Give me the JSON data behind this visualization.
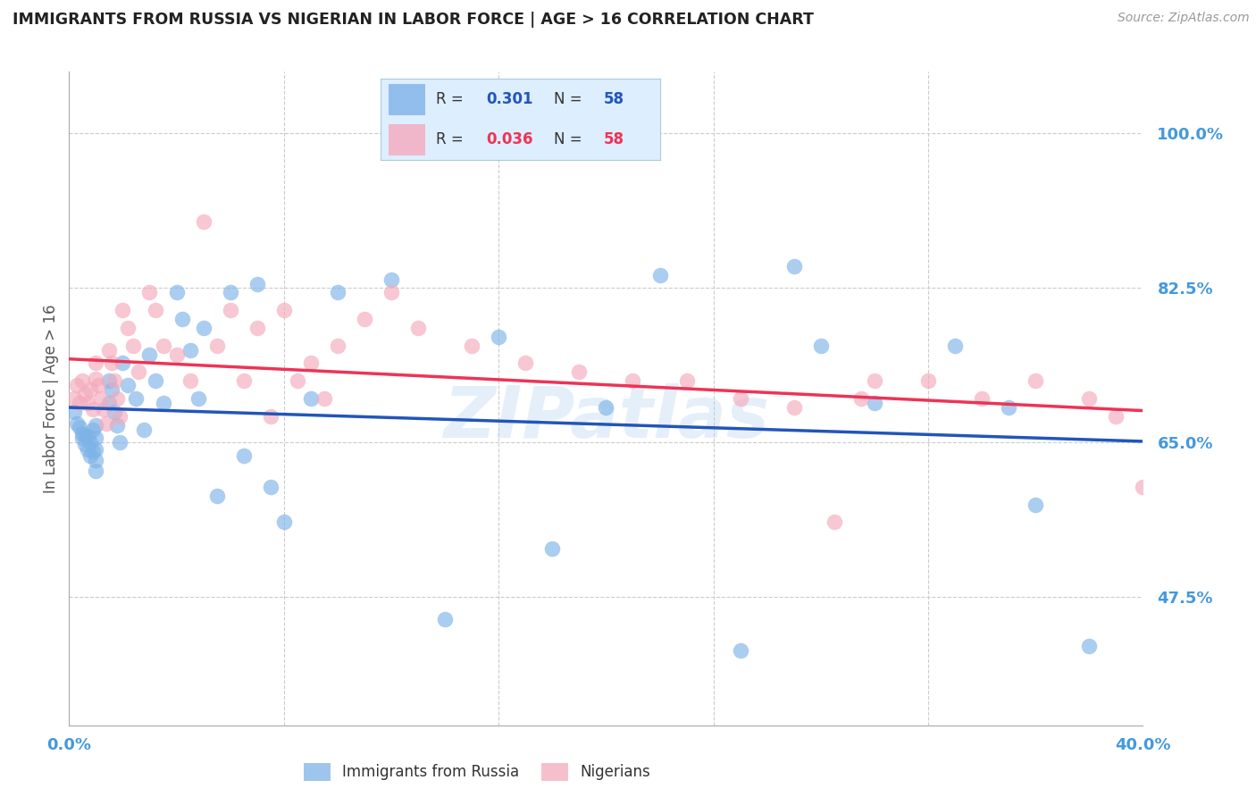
{
  "title": "IMMIGRANTS FROM RUSSIA VS NIGERIAN IN LABOR FORCE | AGE > 16 CORRELATION CHART",
  "source": "Source: ZipAtlas.com",
  "ylabel": "In Labor Force | Age > 16",
  "ytick_values": [
    1.0,
    0.825,
    0.65,
    0.475
  ],
  "xlim": [
    0.0,
    0.4
  ],
  "ylim": [
    0.33,
    1.07
  ],
  "color_blue": "#7EB3E8",
  "color_pink": "#F4AABC",
  "color_line_blue": "#2255BB",
  "color_line_pink": "#EE3355",
  "color_axis_labels": "#4499DD",
  "watermark": "ZIPatlas",
  "russia_x": [
    0.002,
    0.003,
    0.004,
    0.005,
    0.005,
    0.006,
    0.006,
    0.007,
    0.007,
    0.008,
    0.008,
    0.009,
    0.009,
    0.01,
    0.01,
    0.01,
    0.01,
    0.01,
    0.015,
    0.015,
    0.016,
    0.017,
    0.018,
    0.019,
    0.02,
    0.022,
    0.025,
    0.028,
    0.03,
    0.032,
    0.035,
    0.04,
    0.042,
    0.045,
    0.048,
    0.05,
    0.055,
    0.06,
    0.065,
    0.07,
    0.075,
    0.08,
    0.09,
    0.1,
    0.12,
    0.14,
    0.16,
    0.18,
    0.2,
    0.22,
    0.25,
    0.27,
    0.28,
    0.3,
    0.33,
    0.35,
    0.36,
    0.38
  ],
  "russia_y": [
    0.685,
    0.672,
    0.668,
    0.661,
    0.655,
    0.659,
    0.648,
    0.642,
    0.658,
    0.65,
    0.635,
    0.665,
    0.64,
    0.67,
    0.655,
    0.642,
    0.63,
    0.618,
    0.72,
    0.695,
    0.71,
    0.685,
    0.67,
    0.65,
    0.74,
    0.715,
    0.7,
    0.665,
    0.75,
    0.72,
    0.695,
    0.82,
    0.79,
    0.755,
    0.7,
    0.78,
    0.59,
    0.82,
    0.635,
    0.83,
    0.6,
    0.56,
    0.7,
    0.82,
    0.835,
    0.45,
    0.77,
    0.53,
    0.69,
    0.84,
    0.415,
    0.85,
    0.76,
    0.695,
    0.76,
    0.69,
    0.58,
    0.42
  ],
  "nigeria_x": [
    0.002,
    0.003,
    0.004,
    0.005,
    0.006,
    0.007,
    0.008,
    0.009,
    0.01,
    0.01,
    0.011,
    0.012,
    0.013,
    0.014,
    0.015,
    0.016,
    0.017,
    0.018,
    0.019,
    0.02,
    0.022,
    0.024,
    0.026,
    0.03,
    0.032,
    0.035,
    0.04,
    0.045,
    0.05,
    0.055,
    0.06,
    0.065,
    0.07,
    0.075,
    0.08,
    0.085,
    0.09,
    0.095,
    0.1,
    0.11,
    0.12,
    0.13,
    0.15,
    0.17,
    0.19,
    0.21,
    0.23,
    0.25,
    0.27,
    0.3,
    0.32,
    0.34,
    0.36,
    0.38,
    0.39,
    0.4,
    0.295,
    0.285
  ],
  "nigeria_y": [
    0.7,
    0.715,
    0.695,
    0.72,
    0.705,
    0.695,
    0.71,
    0.688,
    0.74,
    0.722,
    0.715,
    0.7,
    0.688,
    0.672,
    0.755,
    0.74,
    0.72,
    0.7,
    0.68,
    0.8,
    0.78,
    0.76,
    0.73,
    0.82,
    0.8,
    0.76,
    0.75,
    0.72,
    0.9,
    0.76,
    0.8,
    0.72,
    0.78,
    0.68,
    0.8,
    0.72,
    0.74,
    0.7,
    0.76,
    0.79,
    0.82,
    0.78,
    0.76,
    0.74,
    0.73,
    0.72,
    0.72,
    0.7,
    0.69,
    0.72,
    0.72,
    0.7,
    0.72,
    0.7,
    0.68,
    0.6,
    0.7,
    0.56
  ]
}
